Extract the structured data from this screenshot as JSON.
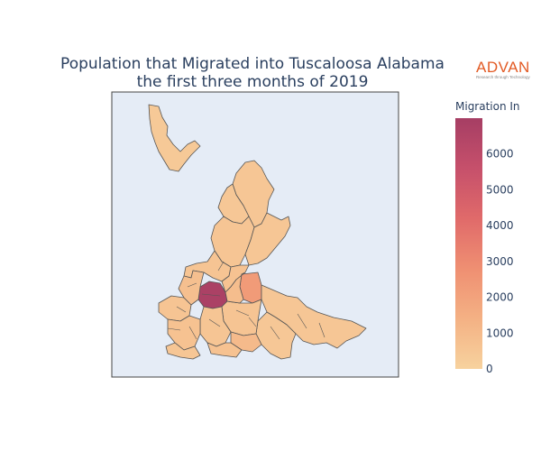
{
  "title_line1": "Population that Migrated into Tuscaloosa Alabama",
  "title_line2": "the first three months of 2019",
  "logo_text": "ADVAN",
  "logo_tagline": "Research through Technology",
  "colorbar": {
    "title": "Migration In",
    "min": 0,
    "max": 7000,
    "ticks": [
      "0",
      "1000",
      "2000",
      "3000",
      "4000",
      "5000",
      "6000"
    ],
    "colors": [
      "#f7d29e",
      "#f4b184",
      "#ef8f72",
      "#e06a6a",
      "#c6506b",
      "#a63e64"
    ]
  },
  "map": {
    "background": "#e5ecf6",
    "border_color": "#555555",
    "tract_values": {
      "north-tract-1": 400,
      "north-tract-2": 500,
      "north-tract-3": 450,
      "north-tract-4": 550,
      "northeast-tract": 500,
      "central-tract-1": 600,
      "central-tract-2": 700,
      "hotspot-tract": 6800,
      "high-tract": 2300,
      "east-tract": 500,
      "southeast-tract": 450,
      "south-tract-1": 600,
      "south-tract-2": 550,
      "west-tract-1": 600,
      "west-tract-2": 800,
      "west-tract-3": 700,
      "southwest-tract": 500,
      "mid-tract-1": 900,
      "mid-tract-2": 1000,
      "mid-tract-3": 700
    }
  }
}
